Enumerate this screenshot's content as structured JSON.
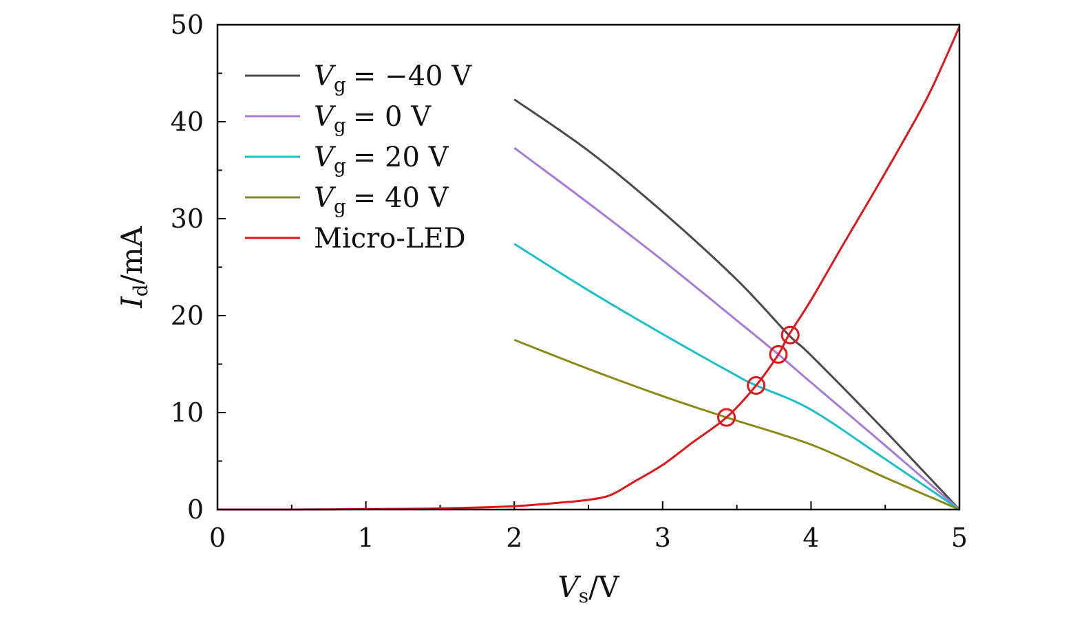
{
  "chart_data": {
    "type": "line",
    "title": "",
    "xlabel": "V",
    "xlabel_sub": "s",
    "xlabel_unit": "/V",
    "ylabel": "I",
    "ylabel_sub": "d",
    "ylabel_unit": "/mA",
    "xlim": [
      0,
      5
    ],
    "ylim": [
      0,
      50
    ],
    "xticks": [
      0,
      1,
      2,
      3,
      4,
      5
    ],
    "yticks": [
      0,
      10,
      20,
      30,
      40,
      50
    ],
    "xminor_step": 0.5,
    "yminor_step": 5,
    "grid": false,
    "legend_position": "top-left",
    "series": [
      {
        "name": "Vg = −40 V",
        "label_var": "V",
        "label_sub": "g",
        "label_rest": "= −40 V",
        "color": "#4a4a4a",
        "x": [
          2.0,
          2.5,
          3.0,
          3.5,
          3.85,
          4.0,
          4.5,
          5.0
        ],
        "y": [
          42.3,
          37.0,
          30.7,
          23.7,
          18.0,
          15.9,
          8.1,
          0
        ]
      },
      {
        "name": "Vg = 0 V",
        "label_var": "V",
        "label_sub": "g",
        "label_rest": "= 0 V",
        "color": "#a779d6",
        "x": [
          2.0,
          2.5,
          3.0,
          3.5,
          3.78,
          4.0,
          4.5,
          5.0
        ],
        "y": [
          37.3,
          31.6,
          25.7,
          19.5,
          16.0,
          13.1,
          6.6,
          0
        ]
      },
      {
        "name": "Vg = 20 V",
        "label_var": "V",
        "label_sub": "g",
        "label_rest": "= 20 V",
        "color": "#1bbfc8",
        "x": [
          2.0,
          2.5,
          3.0,
          3.5,
          3.63,
          4.0,
          4.5,
          5.0
        ],
        "y": [
          27.4,
          22.6,
          18.1,
          13.8,
          12.8,
          10.3,
          5.2,
          0
        ]
      },
      {
        "name": "Vg = 40 V",
        "label_var": "V",
        "label_sub": "g",
        "label_rest": "= 40 V",
        "color": "#8a8a16",
        "x": [
          2.0,
          2.5,
          3.0,
          3.43,
          4.0,
          4.5,
          5.0
        ],
        "y": [
          17.5,
          14.5,
          11.7,
          9.5,
          6.7,
          3.3,
          0
        ]
      },
      {
        "name": "Micro-LED",
        "label_var": "",
        "label_sub": "",
        "label_rest": "Micro-LED",
        "color": "#e0161b",
        "x": [
          0,
          0.5,
          1.0,
          1.5,
          2.0,
          2.3,
          2.5,
          2.65,
          2.8,
          3.0,
          3.2,
          3.43,
          3.63,
          3.78,
          3.85,
          4.0,
          4.2,
          4.4,
          4.6,
          4.8,
          5.0
        ],
        "y": [
          0,
          0,
          0.05,
          0.12,
          0.35,
          0.7,
          1.0,
          1.5,
          2.8,
          4.6,
          6.9,
          9.5,
          12.8,
          16.0,
          18.0,
          21.6,
          26.9,
          32.1,
          37.4,
          43.0,
          49.8
        ]
      }
    ],
    "markers": [
      {
        "x": 3.43,
        "y": 9.5
      },
      {
        "x": 3.63,
        "y": 12.8
      },
      {
        "x": 3.78,
        "y": 16.0
      },
      {
        "x": 3.86,
        "y": 18.0
      }
    ],
    "marker_color": "#e0161b"
  }
}
